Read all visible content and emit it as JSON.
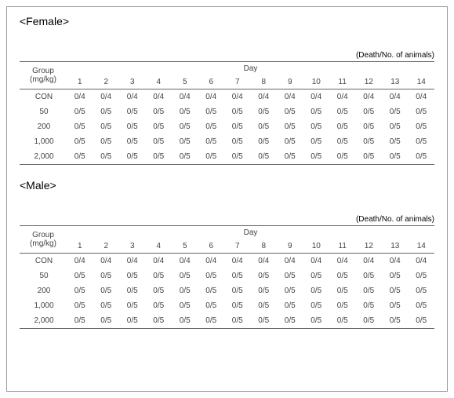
{
  "caption": "(Death/No. of animals)",
  "dayLabel": "Day",
  "groupLabel": "Group\n(mg/kg)",
  "days": [
    "1",
    "2",
    "3",
    "4",
    "5",
    "6",
    "7",
    "8",
    "9",
    "10",
    "11",
    "12",
    "13",
    "14"
  ],
  "sections": [
    {
      "title": "<Female>",
      "rows": [
        {
          "group": "CON",
          "vals": [
            "0/4",
            "0/4",
            "0/4",
            "0/4",
            "0/4",
            "0/4",
            "0/4",
            "0/4",
            "0/4",
            "0/4",
            "0/4",
            "0/4",
            "0/4",
            "0/4"
          ]
        },
        {
          "group": "50",
          "vals": [
            "0/5",
            "0/5",
            "0/5",
            "0/5",
            "0/5",
            "0/5",
            "0/5",
            "0/5",
            "0/5",
            "0/5",
            "0/5",
            "0/5",
            "0/5",
            "0/5"
          ]
        },
        {
          "group": "200",
          "vals": [
            "0/5",
            "0/5",
            "0/5",
            "0/5",
            "0/5",
            "0/5",
            "0/5",
            "0/5",
            "0/5",
            "0/5",
            "0/5",
            "0/5",
            "0/5",
            "0/5"
          ]
        },
        {
          "group": "1,000",
          "vals": [
            "0/5",
            "0/5",
            "0/5",
            "0/5",
            "0/5",
            "0/5",
            "0/5",
            "0/5",
            "0/5",
            "0/5",
            "0/5",
            "0/5",
            "0/5",
            "0/5"
          ]
        },
        {
          "group": "2,000",
          "vals": [
            "0/5",
            "0/5",
            "0/5",
            "0/5",
            "0/5",
            "0/5",
            "0/5",
            "0/5",
            "0/5",
            "0/5",
            "0/5",
            "0/5",
            "0/5",
            "0/5"
          ]
        }
      ]
    },
    {
      "title": "<Male>",
      "rows": [
        {
          "group": "CON",
          "vals": [
            "0/4",
            "0/4",
            "0/4",
            "0/4",
            "0/4",
            "0/4",
            "0/4",
            "0/4",
            "0/4",
            "0/4",
            "0/4",
            "0/4",
            "0/4",
            "0/4"
          ]
        },
        {
          "group": "50",
          "vals": [
            "0/5",
            "0/5",
            "0/5",
            "0/5",
            "0/5",
            "0/5",
            "0/5",
            "0/5",
            "0/5",
            "0/5",
            "0/5",
            "0/5",
            "0/5",
            "0/5"
          ]
        },
        {
          "group": "200",
          "vals": [
            "0/5",
            "0/5",
            "0/5",
            "0/5",
            "0/5",
            "0/5",
            "0/5",
            "0/5",
            "0/5",
            "0/5",
            "0/5",
            "0/5",
            "0/5",
            "0/5"
          ]
        },
        {
          "group": "1,000",
          "vals": [
            "0/5",
            "0/5",
            "0/5",
            "0/5",
            "0/5",
            "0/5",
            "0/5",
            "0/5",
            "0/5",
            "0/5",
            "0/5",
            "0/5",
            "0/5",
            "0/5"
          ]
        },
        {
          "group": "2,000",
          "vals": [
            "0/5",
            "0/5",
            "0/5",
            "0/5",
            "0/5",
            "0/5",
            "0/5",
            "0/5",
            "0/5",
            "0/5",
            "0/5",
            "0/5",
            "0/5",
            "0/5"
          ]
        }
      ]
    }
  ]
}
